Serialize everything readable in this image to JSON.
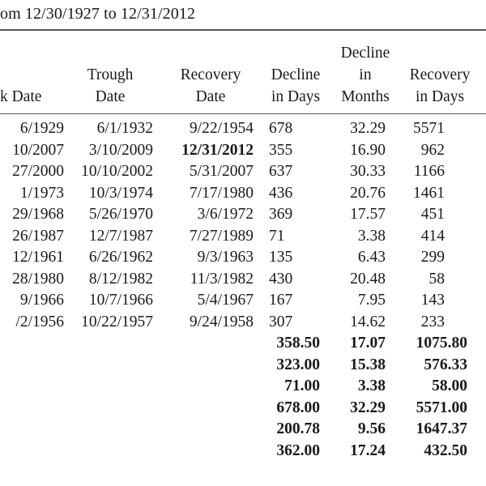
{
  "caption": "om 12/30/1927 to 12/31/2012",
  "headers": {
    "peak": [
      "k Date"
    ],
    "trough": [
      "Trough",
      "Date"
    ],
    "recovery": [
      "Recovery",
      "Date"
    ],
    "decline_days": [
      "Decline",
      "in Days"
    ],
    "decline_months": [
      "Decline",
      "in",
      "Months"
    ],
    "recovery_days": [
      "Recovery",
      "in Days"
    ]
  },
  "rows": [
    {
      "peak": "6/1929",
      "trough": "6/1/1932",
      "recovery": "9/22/1954",
      "recovery_bold": false,
      "decline_days": "678",
      "decline_months": "32.29",
      "recovery_days": "5571"
    },
    {
      "peak": "10/2007",
      "trough": "3/10/2009",
      "recovery": "12/31/2012",
      "recovery_bold": true,
      "decline_days": "355",
      "decline_months": "16.90",
      "recovery_days": "962"
    },
    {
      "peak": "27/2000",
      "trough": "10/10/2002",
      "recovery": "5/31/2007",
      "recovery_bold": false,
      "decline_days": "637",
      "decline_months": "30.33",
      "recovery_days": "1166"
    },
    {
      "peak": "1/1973",
      "trough": "10/3/1974",
      "recovery": "7/17/1980",
      "recovery_bold": false,
      "decline_days": "436",
      "decline_months": "20.76",
      "recovery_days": "1461"
    },
    {
      "peak": "29/1968",
      "trough": "5/26/1970",
      "recovery": "3/6/1972",
      "recovery_bold": false,
      "decline_days": "369",
      "decline_months": "17.57",
      "recovery_days": "451"
    },
    {
      "peak": "26/1987",
      "trough": "12/7/1987",
      "recovery": "7/27/1989",
      "recovery_bold": false,
      "decline_days": "71",
      "decline_months": "3.38",
      "recovery_days": "414"
    },
    {
      "peak": "12/1961",
      "trough": "6/26/1962",
      "recovery": "9/3/1963",
      "recovery_bold": false,
      "decline_days": "135",
      "decline_months": "6.43",
      "recovery_days": "299"
    },
    {
      "peak": "28/1980",
      "trough": "8/12/1982",
      "recovery": "11/3/1982",
      "recovery_bold": false,
      "decline_days": "430",
      "decline_months": "20.48",
      "recovery_days": "58"
    },
    {
      "peak": "9/1966",
      "trough": "10/7/1966",
      "recovery": "5/4/1967",
      "recovery_bold": false,
      "decline_days": "167",
      "decline_months": "7.95",
      "recovery_days": "143"
    },
    {
      "peak": "/2/1956",
      "trough": "10/22/1957",
      "recovery": "9/24/1958",
      "recovery_bold": false,
      "decline_days": "307",
      "decline_months": "14.62",
      "recovery_days": "233"
    }
  ],
  "summary": [
    {
      "decline_days": "358.50",
      "decline_months": "17.07",
      "recovery_days": "1075.80"
    },
    {
      "decline_days": "323.00",
      "decline_months": "15.38",
      "recovery_days": "576.33"
    },
    {
      "decline_days": "71.00",
      "decline_months": "3.38",
      "recovery_days": "58.00"
    },
    {
      "decline_days": "678.00",
      "decline_months": "32.29",
      "recovery_days": "5571.00"
    },
    {
      "decline_days": "200.78",
      "decline_months": "9.56",
      "recovery_days": "1647.37"
    },
    {
      "decline_days": "362.00",
      "decline_months": "17.24",
      "recovery_days": "432.50"
    }
  ]
}
